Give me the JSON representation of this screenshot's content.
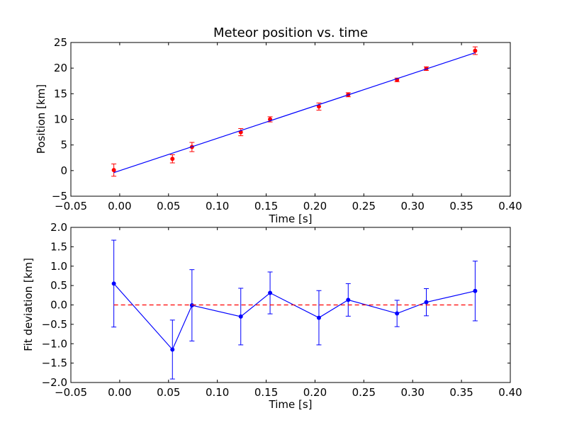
{
  "chart_data": [
    {
      "type": "scatter",
      "title": "Meteor position vs. time",
      "xlabel": "Time [s]",
      "ylabel": "Position [km]",
      "xlim": [
        -0.05,
        0.4
      ],
      "ylim": [
        -5,
        25
      ],
      "xticks": [
        "−0.05",
        "0.00",
        "0.05",
        "0.10",
        "0.15",
        "0.20",
        "0.25",
        "0.30",
        "0.35",
        "0.40"
      ],
      "yticks": [
        "−5",
        "0",
        "5",
        "10",
        "15",
        "20",
        "25"
      ],
      "grid": false,
      "series": [
        {
          "kind": "errorbar-points",
          "color": "#ff0000",
          "points": [
            {
              "x": -0.006,
              "y": 0.1,
              "err": 1.2
            },
            {
              "x": 0.054,
              "y": 2.3,
              "err": 0.8
            },
            {
              "x": 0.074,
              "y": 4.6,
              "err": 0.9
            },
            {
              "x": 0.124,
              "y": 7.5,
              "err": 0.7
            },
            {
              "x": 0.154,
              "y": 10.0,
              "err": 0.5
            },
            {
              "x": 0.204,
              "y": 12.5,
              "err": 0.7
            },
            {
              "x": 0.234,
              "y": 14.8,
              "err": 0.4
            },
            {
              "x": 0.284,
              "y": 17.7,
              "err": 0.35
            },
            {
              "x": 0.314,
              "y": 19.9,
              "err": 0.35
            },
            {
              "x": 0.364,
              "y": 23.4,
              "err": 0.75
            }
          ]
        },
        {
          "kind": "fit-line",
          "color": "#0000ff",
          "points": [
            {
              "x": -0.006,
              "y": -0.4
            },
            {
              "x": 0.364,
              "y": 23.0
            }
          ]
        }
      ]
    },
    {
      "type": "line",
      "xlabel": "Time [s]",
      "ylabel": "Fit deviation [km]",
      "xlim": [
        -0.05,
        0.4
      ],
      "ylim": [
        -2.0,
        2.0
      ],
      "xticks": [
        "−0.05",
        "0.00",
        "0.05",
        "0.10",
        "0.15",
        "0.20",
        "0.25",
        "0.30",
        "0.35",
        "0.40"
      ],
      "yticks": [
        "−2.0",
        "−1.5",
        "−1.0",
        "−0.5",
        "0.0",
        "0.5",
        "1.0",
        "1.5",
        "2.0"
      ],
      "grid": false,
      "series": [
        {
          "kind": "errorbar-line",
          "color": "#0000ff",
          "points": [
            {
              "x": -0.006,
              "y": 0.55,
              "err": 1.12
            },
            {
              "x": 0.054,
              "y": -1.15,
              "err": 0.76
            },
            {
              "x": 0.074,
              "y": -0.01,
              "err": 0.92
            },
            {
              "x": 0.124,
              "y": -0.3,
              "err": 0.73
            },
            {
              "x": 0.154,
              "y": 0.31,
              "err": 0.54
            },
            {
              "x": 0.204,
              "y": -0.33,
              "err": 0.7
            },
            {
              "x": 0.234,
              "y": 0.13,
              "err": 0.42
            },
            {
              "x": 0.284,
              "y": -0.22,
              "err": 0.34
            },
            {
              "x": 0.314,
              "y": 0.07,
              "err": 0.35
            },
            {
              "x": 0.364,
              "y": 0.36,
              "err": 0.77
            }
          ]
        },
        {
          "kind": "reference-line",
          "color": "#ff0000",
          "style": "dashed",
          "points": [
            {
              "x": -0.006,
              "y": 0.0
            },
            {
              "x": 0.364,
              "y": 0.0
            }
          ]
        }
      ]
    }
  ]
}
